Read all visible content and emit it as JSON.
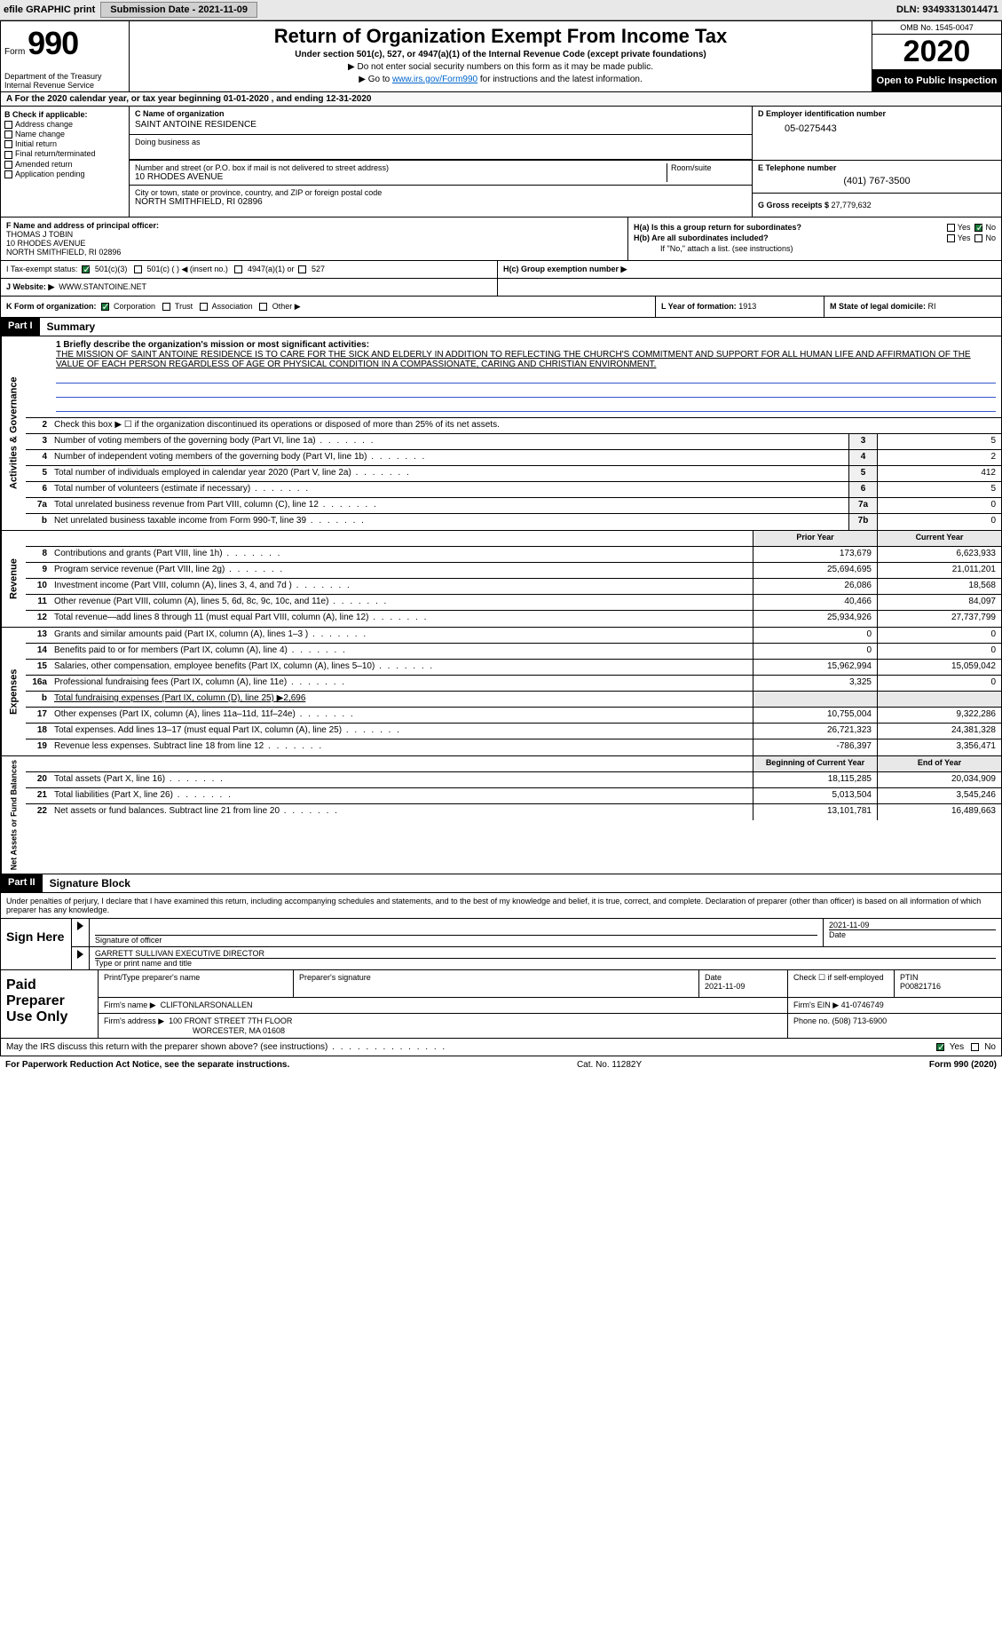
{
  "topbar": {
    "efile": "efile GRAPHIC print",
    "subdate_lbl": "Submission Date - 2021-11-09",
    "dln_lbl": "DLN: 93493313014471"
  },
  "header": {
    "form_word": "Form",
    "form_num": "990",
    "dept": "Department of the Treasury\nInternal Revenue Service",
    "title": "Return of Organization Exempt From Income Tax",
    "sub": "Under section 501(c), 527, or 4947(a)(1) of the Internal Revenue Code (except private foundations)",
    "note1": "▶ Do not enter social security numbers on this form as it may be made public.",
    "note2_pre": "▶ Go to ",
    "note2_link": "www.irs.gov/Form990",
    "note2_post": " for instructions and the latest information.",
    "omb": "OMB No. 1545-0047",
    "year": "2020",
    "open": "Open to Public Inspection"
  },
  "row_a": "A For the 2020 calendar year, or tax year beginning 01-01-2020   , and ending 12-31-2020",
  "sec_b": {
    "hdr": "B Check if applicable:",
    "items": [
      "Address change",
      "Name change",
      "Initial return",
      "Final return/terminated",
      "Amended return",
      "Application pending"
    ]
  },
  "sec_c": {
    "name_lbl": "C Name of organization",
    "name": "SAINT ANTOINE RESIDENCE",
    "dba_lbl": "Doing business as",
    "addr_lbl": "Number and street (or P.O. box if mail is not delivered to street address)",
    "room_lbl": "Room/suite",
    "addr": "10 RHODES AVENUE",
    "city_lbl": "City or town, state or province, country, and ZIP or foreign postal code",
    "city": "NORTH SMITHFIELD, RI  02896"
  },
  "sec_d": {
    "lbl": "D Employer identification number",
    "val": "05-0275443"
  },
  "sec_e": {
    "lbl": "E Telephone number",
    "val": "(401) 767-3500"
  },
  "sec_g": {
    "lbl": "G Gross receipts $ ",
    "val": "27,779,632"
  },
  "sec_f": {
    "lbl": "F  Name and address of principal officer:",
    "name": "THOMAS J TOBIN",
    "addr1": "10 RHODES AVENUE",
    "addr2": "NORTH SMITHFIELD, RI  02896"
  },
  "sec_h": {
    "a_lbl": "H(a)  Is this a group return for subordinates?",
    "b_lbl": "H(b)  Are all subordinates included?",
    "b_note": "If \"No,\" attach a list. (see instructions)",
    "c_lbl": "H(c)  Group exemption number ▶",
    "yes": "Yes",
    "no": "No"
  },
  "sec_i": {
    "lbl": "I   Tax-exempt status:",
    "c3": "501(c)(3)",
    "c": "501(c) (  )  ◀ (insert no.)",
    "a1": "4947(a)(1) or",
    "527": "527"
  },
  "sec_j": {
    "lbl": "J   Website: ▶",
    "val": "WWW.STANTOINE.NET"
  },
  "sec_k": {
    "lbl": "K Form of organization:",
    "corp": "Corporation",
    "trust": "Trust",
    "assoc": "Association",
    "other": "Other ▶"
  },
  "sec_l": {
    "lbl": "L Year of formation: ",
    "val": "1913"
  },
  "sec_m": {
    "lbl": "M State of legal domicile: ",
    "val": "RI"
  },
  "part1": {
    "num": "Part I",
    "title": "Summary"
  },
  "mission": {
    "lbl": "1  Briefly describe the organization's mission or most significant activities:",
    "txt": "THE MISSION OF SAINT ANTOINE RESIDENCE IS TO CARE FOR THE SICK AND ELDERLY IN ADDITION TO REFLECTING THE CHURCH'S COMMITMENT AND SUPPORT FOR ALL HUMAN LIFE AND AFFIRMATION OF THE VALUE OF EACH PERSON REGARDLESS OF AGE OR PHYSICAL CONDITION IN A COMPASSIONATE, CARING AND CHRISTIAN ENVIRONMENT."
  },
  "side_labels": {
    "ag": "Activities & Governance",
    "rev": "Revenue",
    "exp": "Expenses",
    "net": "Net Assets or Fund Balances"
  },
  "lines_ag": [
    {
      "n": "2",
      "d": "Check this box ▶ ☐ if the organization discontinued its operations or disposed of more than 25% of its net assets."
    },
    {
      "n": "3",
      "d": "Number of voting members of the governing body (Part VI, line 1a)",
      "box": "3",
      "v": "5"
    },
    {
      "n": "4",
      "d": "Number of independent voting members of the governing body (Part VI, line 1b)",
      "box": "4",
      "v": "2"
    },
    {
      "n": "5",
      "d": "Total number of individuals employed in calendar year 2020 (Part V, line 2a)",
      "box": "5",
      "v": "412"
    },
    {
      "n": "6",
      "d": "Total number of volunteers (estimate if necessary)",
      "box": "6",
      "v": "5"
    },
    {
      "n": "7a",
      "d": "Total unrelated business revenue from Part VIII, column (C), line 12",
      "box": "7a",
      "v": "0"
    },
    {
      "n": "b",
      "d": "Net unrelated business taxable income from Form 990-T, line 39",
      "box": "7b",
      "v": "0"
    }
  ],
  "col_hdrs": {
    "prior": "Prior Year",
    "current": "Current Year"
  },
  "lines_rev": [
    {
      "n": "8",
      "d": "Contributions and grants (Part VIII, line 1h)",
      "p": "173,679",
      "c": "6,623,933"
    },
    {
      "n": "9",
      "d": "Program service revenue (Part VIII, line 2g)",
      "p": "25,694,695",
      "c": "21,011,201"
    },
    {
      "n": "10",
      "d": "Investment income (Part VIII, column (A), lines 3, 4, and 7d )",
      "p": "26,086",
      "c": "18,568"
    },
    {
      "n": "11",
      "d": "Other revenue (Part VIII, column (A), lines 5, 6d, 8c, 9c, 10c, and 11e)",
      "p": "40,466",
      "c": "84,097"
    },
    {
      "n": "12",
      "d": "Total revenue—add lines 8 through 11 (must equal Part VIII, column (A), line 12)",
      "p": "25,934,926",
      "c": "27,737,799"
    }
  ],
  "lines_exp": [
    {
      "n": "13",
      "d": "Grants and similar amounts paid (Part IX, column (A), lines 1–3 )",
      "p": "0",
      "c": "0"
    },
    {
      "n": "14",
      "d": "Benefits paid to or for members (Part IX, column (A), line 4)",
      "p": "0",
      "c": "0"
    },
    {
      "n": "15",
      "d": "Salaries, other compensation, employee benefits (Part IX, column (A), lines 5–10)",
      "p": "15,962,994",
      "c": "15,059,042"
    },
    {
      "n": "16a",
      "d": "Professional fundraising fees (Part IX, column (A), line 11e)",
      "p": "3,325",
      "c": "0"
    },
    {
      "n": "b",
      "d": "Total fundraising expenses (Part IX, column (D), line 25) ▶2,696",
      "p": "",
      "c": "",
      "noval": true
    },
    {
      "n": "17",
      "d": "Other expenses (Part IX, column (A), lines 11a–11d, 11f–24e)",
      "p": "10,755,004",
      "c": "9,322,286"
    },
    {
      "n": "18",
      "d": "Total expenses. Add lines 13–17 (must equal Part IX, column (A), line 25)",
      "p": "26,721,323",
      "c": "24,381,328"
    },
    {
      "n": "19",
      "d": "Revenue less expenses. Subtract line 18 from line 12",
      "p": "-786,397",
      "c": "3,356,471"
    }
  ],
  "col_hdrs2": {
    "begin": "Beginning of Current Year",
    "end": "End of Year"
  },
  "lines_net": [
    {
      "n": "20",
      "d": "Total assets (Part X, line 16)",
      "p": "18,115,285",
      "c": "20,034,909"
    },
    {
      "n": "21",
      "d": "Total liabilities (Part X, line 26)",
      "p": "5,013,504",
      "c": "3,545,246"
    },
    {
      "n": "22",
      "d": "Net assets or fund balances. Subtract line 21 from line 20",
      "p": "13,101,781",
      "c": "16,489,663"
    }
  ],
  "part2": {
    "num": "Part II",
    "title": "Signature Block"
  },
  "sig_decl": "Under penalties of perjury, I declare that I have examined this return, including accompanying schedules and statements, and to the best of my knowledge and belief, it is true, correct, and complete. Declaration of preparer (other than officer) is based on all information of which preparer has any knowledge.",
  "sign": {
    "left": "Sign Here",
    "sig_lbl": "Signature of officer",
    "date": "2021-11-09",
    "date_lbl": "Date",
    "name": "GARRETT SULLIVAN  EXECUTIVE DIRECTOR",
    "name_lbl": "Type or print name and title"
  },
  "prep": {
    "left": "Paid Preparer Use Only",
    "r1": {
      "name_lbl": "Print/Type preparer's name",
      "sig_lbl": "Preparer's signature",
      "date_lbl": "Date",
      "date": "2021-11-09",
      "self_lbl": "Check ☐ if self-employed",
      "ptin_lbl": "PTIN",
      "ptin": "P00821716"
    },
    "r2": {
      "firm_lbl": "Firm's name    ▶",
      "firm": "CLIFTONLARSONALLEN",
      "ein_lbl": "Firm's EIN ▶",
      "ein": "41-0746749"
    },
    "r3": {
      "addr_lbl": "Firm's address ▶",
      "addr1": "100 FRONT STREET 7TH FLOOR",
      "addr2": "WORCESTER, MA  01608",
      "phone_lbl": "Phone no. ",
      "phone": "(508) 713-6900"
    }
  },
  "irs_discuss": {
    "txt": "May the IRS discuss this return with the preparer shown above? (see instructions)",
    "yes": "Yes",
    "no": "No"
  },
  "footer": {
    "left": "For Paperwork Reduction Act Notice, see the separate instructions.",
    "mid": "Cat. No. 11282Y",
    "right": "Form 990 (2020)"
  },
  "colors": {
    "link": "#0066cc",
    "check_green": "#1a7a3a",
    "shade": "#e8e8e8"
  }
}
